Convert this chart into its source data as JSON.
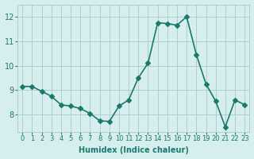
{
  "x": [
    0,
    1,
    2,
    3,
    4,
    5,
    6,
    7,
    8,
    9,
    10,
    11,
    12,
    13,
    14,
    15,
    16,
    17,
    18,
    19,
    20,
    21,
    22,
    23
  ],
  "y": [
    9.15,
    9.15,
    8.95,
    8.75,
    8.4,
    8.35,
    8.25,
    8.05,
    7.75,
    7.72,
    8.35,
    8.6,
    9.5,
    10.1,
    11.75,
    11.72,
    11.65,
    12.0,
    10.45,
    9.25,
    8.55,
    7.5,
    8.6,
    8.4
  ],
  "line_color": "#1a7a6e",
  "marker": "D",
  "marker_size": 3,
  "line_width": 1.2,
  "bg_color": "#d6eeee",
  "grid_color": "#b0cccc",
  "xlabel": "Humidex (Indice chaleur)",
  "yticks": [
    8,
    9,
    10,
    11,
    12
  ],
  "ylim": [
    7.3,
    12.5
  ],
  "xlim": [
    -0.5,
    23.5
  ],
  "xticks": [
    0,
    1,
    2,
    3,
    4,
    5,
    6,
    7,
    8,
    9,
    10,
    11,
    12,
    13,
    14,
    15,
    16,
    17,
    18,
    19,
    20,
    21,
    22,
    23
  ]
}
